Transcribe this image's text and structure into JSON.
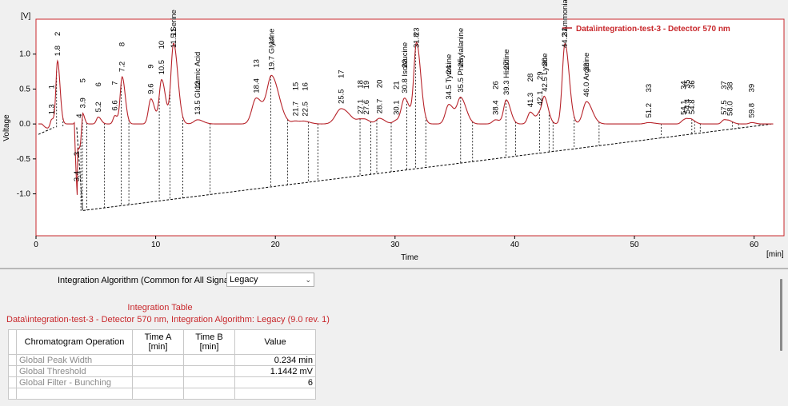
{
  "chart_data": {
    "type": "line",
    "y_unit": "[V]",
    "x_unit": "[min]",
    "xlabel": "Time",
    "ylabel": "Voltage",
    "xlim": [
      0,
      62.5
    ],
    "ylim": [
      -1.6,
      1.5
    ],
    "x_ticks": [
      0,
      10,
      20,
      30,
      40,
      50,
      60
    ],
    "y_ticks": [
      1.0,
      0.5,
      0.0,
      -0.5,
      -1.0
    ],
    "y_tick_labels": [
      "1.0",
      "0.5",
      "0.0",
      "-0.5",
      "-1.0"
    ],
    "legend": "Data\\integration-test-3 - Detector  570 nm",
    "legend_position": "top-right",
    "colors": {
      "signal": "#b7232a",
      "baseline": "#000000",
      "frame": "#c8272b"
    },
    "peaks": [
      {
        "id": "1",
        "t": 1.3,
        "rt": "1.3",
        "h": 0.1,
        "w": 0.12
      },
      {
        "id": "2",
        "t": 1.8,
        "rt": "1.8",
        "h": 0.9,
        "w": 0.13
      },
      {
        "id": "3",
        "t": 3.4,
        "rt": "3.4",
        "h": 0.12,
        "w": 0.1
      },
      {
        "id": "4",
        "t": 3.6,
        "rt": "",
        "h": 0.1,
        "w": 0.08
      },
      {
        "id": "5",
        "t": 3.9,
        "rt": "3.9",
        "h": 0.15,
        "w": 0.1
      },
      {
        "id": "6",
        "t": 5.2,
        "rt": "5.2",
        "h": 0.1,
        "w": 0.15
      },
      {
        "id": "7",
        "t": 6.6,
        "rt": "6.6",
        "h": 0.12,
        "w": 0.15
      },
      {
        "id": "8",
        "t": 7.2,
        "rt": "7.2",
        "h": 0.67,
        "w": 0.16
      },
      {
        "id": "9",
        "t": 9.6,
        "rt": "9.6",
        "h": 0.36,
        "w": 0.2
      },
      {
        "id": "10",
        "t": 10.5,
        "rt": "10.5",
        "h": 0.63,
        "w": 0.2
      },
      {
        "id": "11",
        "t": 11.5,
        "rt": "11.5 Serine",
        "h": 1.15,
        "w": 0.22
      },
      {
        "id": "12",
        "t": 13.5,
        "rt": "13.5 Glutamic Acid",
        "h": 0.06,
        "w": 0.3
      },
      {
        "id": "13",
        "t": 18.4,
        "rt": "18.4",
        "h": 0.37,
        "w": 0.35
      },
      {
        "id": "14",
        "t": 19.7,
        "rt": "19.7 Glycine",
        "h": 0.67,
        "w": 0.38
      },
      {
        "id": "15",
        "t": 21.7,
        "rt": "21.7",
        "h": 0.04,
        "w": 0.3
      },
      {
        "id": "16",
        "t": 22.5,
        "rt": "22.5",
        "h": 0.03,
        "w": 0.3
      },
      {
        "id": "17",
        "t": 25.5,
        "rt": "25.5",
        "h": 0.22,
        "w": 0.45
      },
      {
        "id": "18",
        "t": 27.1,
        "rt": "27.1",
        "h": 0.05,
        "w": 0.25
      },
      {
        "id": "19",
        "t": 27.6,
        "rt": "27.6",
        "h": 0.04,
        "w": 0.25
      },
      {
        "id": "20",
        "t": 28.7,
        "rt": "28.7",
        "h": 0.08,
        "w": 0.28
      },
      {
        "id": "21",
        "t": 30.1,
        "rt": "30.1",
        "h": 0.05,
        "w": 0.25
      },
      {
        "id": "22",
        "t": 30.8,
        "rt": "30.8 Isoleucine",
        "h": 0.36,
        "w": 0.26
      },
      {
        "id": "23",
        "t": 31.8,
        "rt": "31.8",
        "h": 1.15,
        "w": 0.22
      },
      {
        "id": "24",
        "t": 34.5,
        "rt": "34.5 Tyrosine",
        "h": 0.28,
        "w": 0.28
      },
      {
        "id": "25",
        "t": 35.5,
        "rt": "35.5 Phenylalanine",
        "h": 0.36,
        "w": 0.28
      },
      {
        "id": "26",
        "t": 38.4,
        "rt": "38.4",
        "h": 0.06,
        "w": 0.25
      },
      {
        "id": "27",
        "t": 39.3,
        "rt": "39.3 Histidine",
        "h": 0.34,
        "w": 0.22
      },
      {
        "id": "28",
        "t": 41.3,
        "rt": "41.3",
        "h": 0.17,
        "w": 0.22
      },
      {
        "id": "29",
        "t": 42.1,
        "rt": "42.1",
        "h": 0.14,
        "w": 0.22
      },
      {
        "id": "30",
        "t": 42.5,
        "rt": "42.5 Lysine",
        "h": 0.32,
        "w": 0.2
      },
      {
        "id": "31",
        "t": 44.2,
        "rt": "44.2 Ammonia",
        "h": 1.15,
        "w": 0.22
      },
      {
        "id": "32",
        "t": 46.0,
        "rt": "46.0 Arginine",
        "h": 0.32,
        "w": 0.3
      },
      {
        "id": "33",
        "t": 51.2,
        "rt": "51.2",
        "h": 0.02,
        "w": 0.3
      },
      {
        "id": "34",
        "t": 54.1,
        "rt": "54.1",
        "h": 0.05,
        "w": 0.2
      },
      {
        "id": "35",
        "t": 54.4,
        "rt": "54.4",
        "h": 0.04,
        "w": 0.18
      },
      {
        "id": "36",
        "t": 54.8,
        "rt": "54.8",
        "h": 0.05,
        "w": 0.2
      },
      {
        "id": "37",
        "t": 57.5,
        "rt": "57.5",
        "h": 0.06,
        "w": 0.2
      },
      {
        "id": "38",
        "t": 58.0,
        "rt": "58.0",
        "h": 0.03,
        "w": 0.2
      },
      {
        "id": "39",
        "t": 59.8,
        "rt": "59.8",
        "h": 0.02,
        "w": 0.2
      }
    ]
  },
  "integration": {
    "algorithm_label": "Integration Algorithm (Common for All Signals)",
    "algorithm_value": "Legacy",
    "table_title": "Integration Table",
    "table_subtitle": "Data\\integration-test-3 - Detector  570 nm, Integration Algorithm: Legacy (9.0 rev. 1)",
    "headers": {
      "operation": "Chromatogram Operation",
      "time_a": "Time A [min]",
      "time_b": "Time B [min]",
      "value": "Value"
    },
    "rows": [
      {
        "operation": "Global Peak Width",
        "time_a": "",
        "time_b": "",
        "value": "0.234 min"
      },
      {
        "operation": "Global Threshold",
        "time_a": "",
        "time_b": "",
        "value": "1.1442 mV"
      },
      {
        "operation": "Global Filter - Bunching",
        "time_a": "",
        "time_b": "",
        "value": "6"
      }
    ]
  }
}
